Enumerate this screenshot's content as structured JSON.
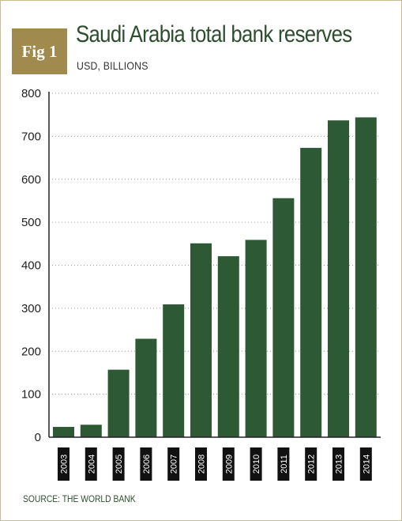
{
  "figure": {
    "badge": "Fig 1",
    "title": "Saudi Arabia total bank reserves",
    "subtitle": "USD, BILLIONS",
    "source": "SOURCE: THE WORLD BANK"
  },
  "colors": {
    "bar": "#2d5a34",
    "badge": "#a08a4e",
    "title": "#2d4e2d",
    "axis": "#222222",
    "grid": "#9a9a9a",
    "border": "#c9bd96"
  },
  "chart_data": {
    "type": "bar",
    "title": "Saudi Arabia total bank reserves",
    "subtitle": "USD, BILLIONS",
    "xlabel": "",
    "ylabel": "",
    "categories": [
      "2003",
      "2004",
      "2005",
      "2006",
      "2007",
      "2008",
      "2009",
      "2010",
      "2011",
      "2012",
      "2013",
      "2014"
    ],
    "values": [
      24,
      29,
      157,
      229,
      309,
      451,
      421,
      459,
      556,
      673,
      737,
      744
    ],
    "ylim": [
      0,
      800
    ],
    "yticks": [
      0,
      100,
      200,
      300,
      400,
      500,
      600,
      700,
      800
    ],
    "grid": true,
    "grid_style": "dotted horizontal",
    "legend": "none",
    "source": "SOURCE: THE WORLD BANK"
  }
}
